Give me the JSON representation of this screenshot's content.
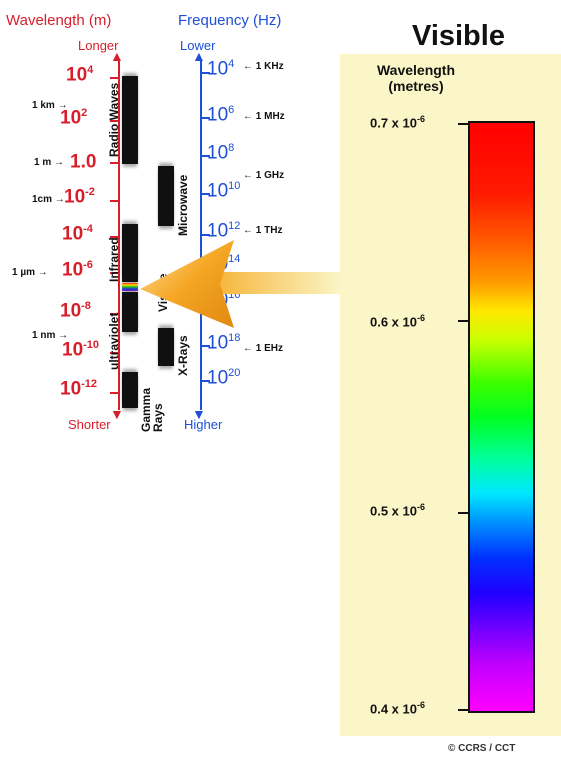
{
  "header": {
    "wavelength_title": "Wavelength (m)",
    "frequency_title": "Frequency (Hz)",
    "longer": "Longer",
    "shorter": "Shorter",
    "lower": "Lower",
    "higher": "Higher"
  },
  "wavelength_ticks": [
    {
      "base": "10",
      "exp": "4"
    },
    {
      "base": "10",
      "exp": "2"
    },
    {
      "base": "1.0",
      "exp": ""
    },
    {
      "base": "10",
      "exp": "-2"
    },
    {
      "base": "10",
      "exp": "-4"
    },
    {
      "base": "10",
      "exp": "-6"
    },
    {
      "base": "10",
      "exp": "-8"
    },
    {
      "base": "10",
      "exp": "-10"
    },
    {
      "base": "10",
      "exp": "-12"
    }
  ],
  "wavelength_markers": [
    "1 km",
    "1 m",
    "1cm",
    "1 µm",
    "1 nm"
  ],
  "frequency_ticks": [
    {
      "base": "10",
      "exp": "4"
    },
    {
      "base": "10",
      "exp": "6"
    },
    {
      "base": "10",
      "exp": "8"
    },
    {
      "base": "10",
      "exp": "10"
    },
    {
      "base": "10",
      "exp": "12"
    },
    {
      "base": "10",
      "exp": "14"
    },
    {
      "base": "10",
      "exp": "16"
    },
    {
      "base": "10",
      "exp": "18"
    },
    {
      "base": "10",
      "exp": "20"
    }
  ],
  "frequency_markers": [
    "1 KHz",
    "1 MHz",
    "1 GHz",
    "1 THz",
    "1 EHz"
  ],
  "bands": {
    "radio": "Radio Waves",
    "microwave": "Microwave",
    "infrared": "Infrared",
    "visible": "Visible",
    "ultraviolet": "ultraviolet",
    "xrays": "X-Rays",
    "gamma": "Gamma Rays"
  },
  "visible_panel": {
    "title": "Visible",
    "scale_header_line1": "Wavelength",
    "scale_header_line2": "(metres)",
    "scale": [
      {
        "base": "0.7 x 10",
        "exp": "-6"
      },
      {
        "base": "0.6 x 10",
        "exp": "-6"
      },
      {
        "base": "0.5 x 10",
        "exp": "-6"
      },
      {
        "base": "0.4 x 10",
        "exp": "-6"
      }
    ]
  },
  "copyright": "© CCRS / CCT",
  "colors": {
    "wavelength": "#d81e2b",
    "frequency": "#1e4fd8",
    "panel": "#fbf6c8",
    "arrow": "#f5a623"
  }
}
